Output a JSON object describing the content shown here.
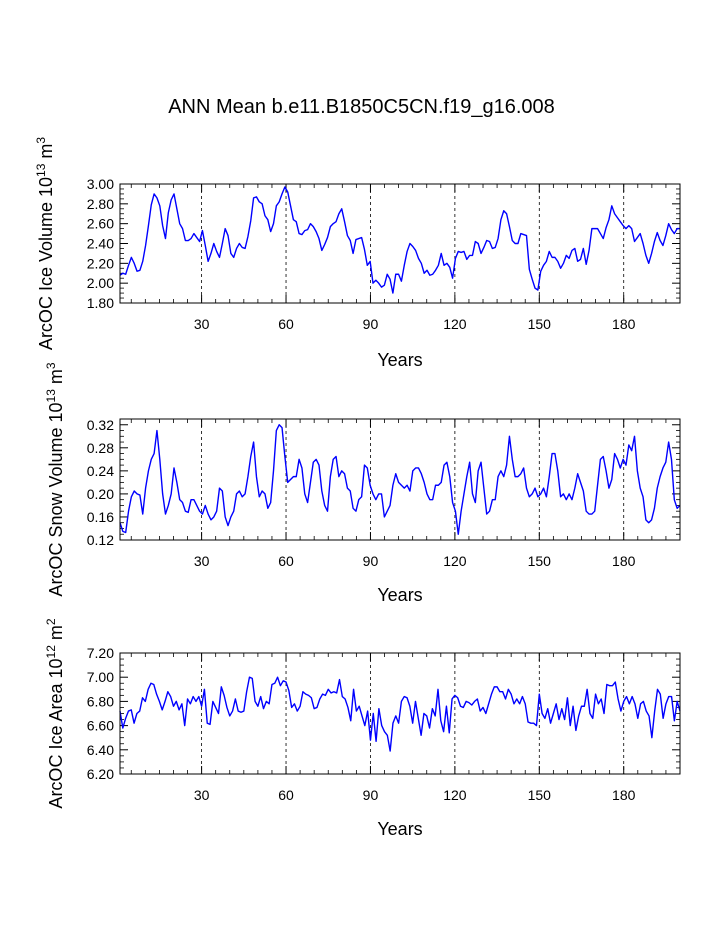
{
  "title": "ANN Mean b.e11.B1850C5CN.f19_g16.008",
  "colors": {
    "series": "#0000ff",
    "axis": "#000000",
    "grid": "#000000"
  },
  "chart_data": [
    {
      "type": "line",
      "ylabel": "ArcOC Ice Volume 10",
      "ylabel_exp": "13",
      "ylabel_unit": " m",
      "ylabel_unit_exp": "3",
      "xlabel": "Years",
      "xlim": [
        1,
        200
      ],
      "ylim": [
        1.8,
        3.0
      ],
      "xticks": [
        30,
        60,
        90,
        120,
        150,
        180
      ],
      "xtick_labels": [
        "30",
        "60",
        "90",
        "120",
        "150",
        "180"
      ],
      "yticks": [
        1.8,
        2.0,
        2.2,
        2.4,
        2.6,
        2.8,
        3.0
      ],
      "ytick_labels": [
        "1.80",
        "2.00",
        "2.20",
        "2.40",
        "2.60",
        "2.80",
        "3.00"
      ],
      "grid": "vertical dashed at x ticks",
      "values": [
        2.08,
        2.1,
        2.09,
        2.18,
        2.26,
        2.2,
        2.12,
        2.13,
        2.22,
        2.38,
        2.58,
        2.79,
        2.9,
        2.86,
        2.78,
        2.58,
        2.45,
        2.71,
        2.84,
        2.9,
        2.75,
        2.6,
        2.55,
        2.43,
        2.43,
        2.45,
        2.5,
        2.46,
        2.42,
        2.53,
        2.38,
        2.22,
        2.3,
        2.4,
        2.32,
        2.26,
        2.4,
        2.55,
        2.48,
        2.3,
        2.26,
        2.35,
        2.4,
        2.36,
        2.35,
        2.47,
        2.63,
        2.86,
        2.87,
        2.82,
        2.8,
        2.68,
        2.64,
        2.52,
        2.6,
        2.78,
        2.82,
        2.9,
        2.97,
        2.92,
        2.78,
        2.64,
        2.62,
        2.5,
        2.49,
        2.53,
        2.54,
        2.6,
        2.57,
        2.52,
        2.45,
        2.33,
        2.39,
        2.46,
        2.57,
        2.6,
        2.62,
        2.7,
        2.75,
        2.62,
        2.48,
        2.43,
        2.3,
        2.44,
        2.45,
        2.46,
        2.34,
        2.18,
        2.22,
        2.0,
        2.03,
        2.0,
        1.96,
        1.98,
        2.09,
        2.04,
        1.9,
        2.09,
        2.09,
        2.02,
        2.18,
        2.32,
        2.4,
        2.37,
        2.33,
        2.25,
        2.2,
        2.1,
        2.13,
        2.08,
        2.09,
        2.13,
        2.18,
        2.3,
        2.18,
        2.2,
        2.16,
        2.05,
        2.25,
        2.32,
        2.31,
        2.32,
        2.24,
        2.28,
        2.28,
        2.42,
        2.4,
        2.3,
        2.36,
        2.43,
        2.42,
        2.35,
        2.36,
        2.45,
        2.64,
        2.73,
        2.7,
        2.57,
        2.43,
        2.4,
        2.4,
        2.5,
        2.49,
        2.48,
        2.14,
        2.04,
        1.95,
        1.93,
        2.12,
        2.18,
        2.22,
        2.32,
        2.26,
        2.26,
        2.22,
        2.15,
        2.2,
        2.28,
        2.25,
        2.33,
        2.35,
        2.22,
        2.24,
        2.35,
        2.19,
        2.33,
        2.55,
        2.55,
        2.55,
        2.5,
        2.45,
        2.56,
        2.64,
        2.78,
        2.7,
        2.66,
        2.62,
        2.58,
        2.55,
        2.58,
        2.55,
        2.42,
        2.46,
        2.5,
        2.4,
        2.28,
        2.2,
        2.3,
        2.42,
        2.51,
        2.43,
        2.38,
        2.48,
        2.6,
        2.54,
        2.5,
        2.55,
        2.55
      ]
    },
    {
      "type": "line",
      "ylabel": "ArcOC Snow Volume 10",
      "ylabel_exp": "13",
      "ylabel_unit": " m",
      "ylabel_unit_exp": "3",
      "xlabel": "Years",
      "xlim": [
        1,
        200
      ],
      "ylim": [
        0.12,
        0.33
      ],
      "xticks": [
        30,
        60,
        90,
        120,
        150,
        180
      ],
      "xtick_labels": [
        "30",
        "60",
        "90",
        "120",
        "150",
        "180"
      ],
      "yticks": [
        0.12,
        0.16,
        0.2,
        0.24,
        0.28,
        0.32
      ],
      "ytick_labels": [
        "0.12",
        "0.16",
        "0.20",
        "0.24",
        "0.28",
        "0.32"
      ],
      "grid": "vertical dashed at x ticks",
      "values": [
        0.15,
        0.135,
        0.133,
        0.17,
        0.195,
        0.205,
        0.2,
        0.198,
        0.165,
        0.21,
        0.24,
        0.26,
        0.27,
        0.31,
        0.26,
        0.2,
        0.165,
        0.18,
        0.2,
        0.245,
        0.22,
        0.19,
        0.185,
        0.17,
        0.168,
        0.19,
        0.19,
        0.18,
        0.17,
        0.165,
        0.18,
        0.165,
        0.155,
        0.16,
        0.17,
        0.21,
        0.205,
        0.16,
        0.145,
        0.16,
        0.17,
        0.2,
        0.205,
        0.195,
        0.2,
        0.23,
        0.265,
        0.29,
        0.23,
        0.195,
        0.205,
        0.2,
        0.175,
        0.185,
        0.24,
        0.31,
        0.32,
        0.315,
        0.265,
        0.22,
        0.225,
        0.23,
        0.23,
        0.26,
        0.245,
        0.2,
        0.185,
        0.22,
        0.255,
        0.26,
        0.25,
        0.205,
        0.18,
        0.17,
        0.23,
        0.26,
        0.265,
        0.23,
        0.24,
        0.235,
        0.21,
        0.205,
        0.175,
        0.17,
        0.19,
        0.195,
        0.25,
        0.245,
        0.215,
        0.2,
        0.19,
        0.2,
        0.2,
        0.16,
        0.17,
        0.18,
        0.215,
        0.235,
        0.22,
        0.215,
        0.21,
        0.215,
        0.205,
        0.24,
        0.245,
        0.245,
        0.235,
        0.22,
        0.2,
        0.19,
        0.19,
        0.215,
        0.215,
        0.22,
        0.25,
        0.255,
        0.23,
        0.185,
        0.17,
        0.13,
        0.17,
        0.2,
        0.23,
        0.255,
        0.2,
        0.185,
        0.24,
        0.255,
        0.21,
        0.165,
        0.17,
        0.19,
        0.19,
        0.23,
        0.24,
        0.23,
        0.25,
        0.3,
        0.26,
        0.23,
        0.23,
        0.235,
        0.245,
        0.21,
        0.195,
        0.2,
        0.21,
        0.195,
        0.2,
        0.21,
        0.195,
        0.23,
        0.27,
        0.27,
        0.24,
        0.195,
        0.2,
        0.19,
        0.2,
        0.19,
        0.21,
        0.235,
        0.22,
        0.205,
        0.17,
        0.165,
        0.165,
        0.17,
        0.215,
        0.26,
        0.265,
        0.24,
        0.21,
        0.225,
        0.27,
        0.26,
        0.245,
        0.26,
        0.25,
        0.285,
        0.275,
        0.3,
        0.24,
        0.21,
        0.195,
        0.155,
        0.15,
        0.155,
        0.175,
        0.21,
        0.23,
        0.245,
        0.255,
        0.29,
        0.26,
        0.19,
        0.175,
        0.18
      ]
    },
    {
      "type": "line",
      "ylabel": "ArcOC Ice Area 10",
      "ylabel_exp": "12",
      "ylabel_unit": " m",
      "ylabel_unit_exp": "2",
      "xlabel": "Years",
      "xlim": [
        1,
        200
      ],
      "ylim": [
        6.2,
        7.2
      ],
      "xticks": [
        30,
        60,
        90,
        120,
        150,
        180
      ],
      "xtick_labels": [
        "30",
        "60",
        "90",
        "120",
        "150",
        "180"
      ],
      "yticks": [
        6.2,
        6.4,
        6.6,
        6.8,
        7.0,
        7.2
      ],
      "ytick_labels": [
        "6.20",
        "6.40",
        "6.60",
        "6.80",
        "7.00",
        "7.20"
      ],
      "grid": "vertical dashed at x ticks",
      "values": [
        6.72,
        6.58,
        6.66,
        6.72,
        6.73,
        6.62,
        6.7,
        6.72,
        6.83,
        6.8,
        6.9,
        6.95,
        6.94,
        6.86,
        6.8,
        6.73,
        6.8,
        6.88,
        6.84,
        6.76,
        6.8,
        6.73,
        6.78,
        6.6,
        6.82,
        6.78,
        6.84,
        6.8,
        6.84,
        6.76,
        6.9,
        6.62,
        6.61,
        6.8,
        6.75,
        6.7,
        6.92,
        6.85,
        6.75,
        6.68,
        6.72,
        6.82,
        6.72,
        6.71,
        6.72,
        6.88,
        7.0,
        6.99,
        6.8,
        6.76,
        6.84,
        6.74,
        6.8,
        6.78,
        6.94,
        6.95,
        7.0,
        6.93,
        6.97,
        6.96,
        6.89,
        6.75,
        6.78,
        6.72,
        6.76,
        6.88,
        6.86,
        6.85,
        6.83,
        6.74,
        6.75,
        6.82,
        6.86,
        6.85,
        6.9,
        6.87,
        6.88,
        6.87,
        6.98,
        6.84,
        6.82,
        6.75,
        6.64,
        6.9,
        6.72,
        6.76,
        6.68,
        6.6,
        6.72,
        6.48,
        6.7,
        6.47,
        6.74,
        6.6,
        6.55,
        6.52,
        6.39,
        6.62,
        6.68,
        6.62,
        6.8,
        6.84,
        6.83,
        6.76,
        6.62,
        6.8,
        6.66,
        6.52,
        6.7,
        6.68,
        6.58,
        6.74,
        6.68,
        6.9,
        6.64,
        6.55,
        6.76,
        6.54,
        6.82,
        6.85,
        6.83,
        6.76,
        6.75,
        6.8,
        6.79,
        6.77,
        6.8,
        6.82,
        6.72,
        6.75,
        6.7,
        6.78,
        6.86,
        6.92,
        6.92,
        6.88,
        6.88,
        6.82,
        6.9,
        6.86,
        6.78,
        6.82,
        6.78,
        6.84,
        6.78,
        6.63,
        6.62,
        6.62,
        6.6,
        6.86,
        6.7,
        6.66,
        6.74,
        6.62,
        6.7,
        6.78,
        6.65,
        6.74,
        6.65,
        6.83,
        6.6,
        6.76,
        6.56,
        6.68,
        6.76,
        6.76,
        6.9,
        6.7,
        6.66,
        6.86,
        6.78,
        6.82,
        6.7,
        6.94,
        6.93,
        6.93,
        6.96,
        6.82,
        6.72,
        6.8,
        6.84,
        6.78,
        6.84,
        6.78,
        6.66,
        6.78,
        6.8,
        6.72,
        6.68,
        6.5,
        6.72,
        6.9,
        6.86,
        6.66,
        6.78,
        6.84,
        6.84,
        6.64,
        6.8,
        6.72
      ]
    }
  ]
}
